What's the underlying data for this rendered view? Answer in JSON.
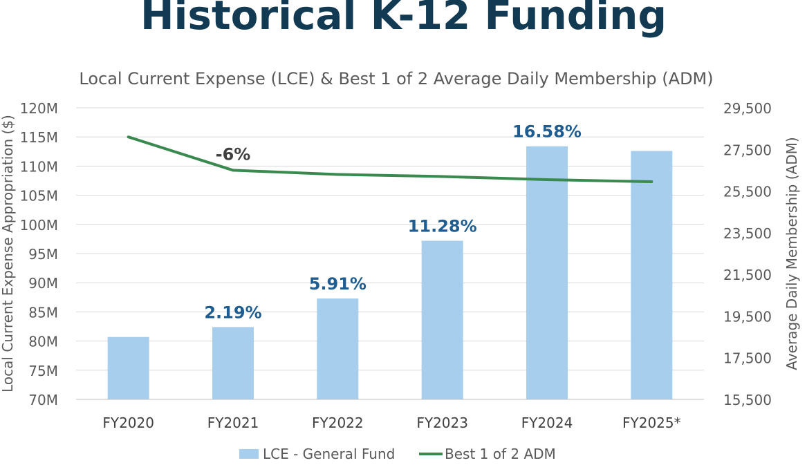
{
  "page": {
    "title": "Historical K-12 Funding"
  },
  "chart_data": {
    "type": "bar",
    "title": "Local Current Expense (LCE) & Best 1 of 2 Average Daily Membership (ADM)",
    "ylabel": "Local Current Expense Appropriation ($)",
    "y2label": "Average Daily Membership (ADM)",
    "categories": [
      "FY2020",
      "FY2021",
      "FY2022",
      "FY2023",
      "FY2024",
      "FY2025*"
    ],
    "ylim": [
      70,
      120
    ],
    "y2lim": [
      15500,
      29500
    ],
    "yticks": [
      70,
      75,
      80,
      85,
      90,
      95,
      100,
      105,
      110,
      115,
      120
    ],
    "ytick_labels": [
      "70M",
      "75M",
      "80M",
      "85M",
      "90M",
      "95M",
      "100M",
      "105M",
      "110M",
      "115M",
      "120M"
    ],
    "y2ticks": [
      15500,
      17500,
      19500,
      21500,
      23500,
      25500,
      27500,
      29500
    ],
    "y2tick_labels": [
      "15,500",
      "17,500",
      "19,500",
      "21,500",
      "23,500",
      "25,500",
      "27,500",
      "29,500"
    ],
    "series": [
      {
        "name": "LCE - General Fund",
        "type": "bar",
        "axis": "left",
        "color": "#a7cfed",
        "values": [
          80.7,
          82.4,
          87.3,
          97.2,
          113.4,
          112.6
        ],
        "labels": [
          "",
          "2.19%",
          "5.91%",
          "11.28%",
          "16.58%",
          ""
        ],
        "label_color": "#1f5d91"
      },
      {
        "name": "Best 1 of 2 ADM",
        "type": "line",
        "axis": "right",
        "color": "#3a8a4f",
        "values": [
          28100,
          26500,
          26300,
          26200,
          26050,
          25950
        ],
        "labels": [
          "",
          "-6%",
          "",
          "",
          "",
          ""
        ],
        "label_color": "#404040"
      }
    ],
    "grid": true,
    "legend": "bottom"
  }
}
